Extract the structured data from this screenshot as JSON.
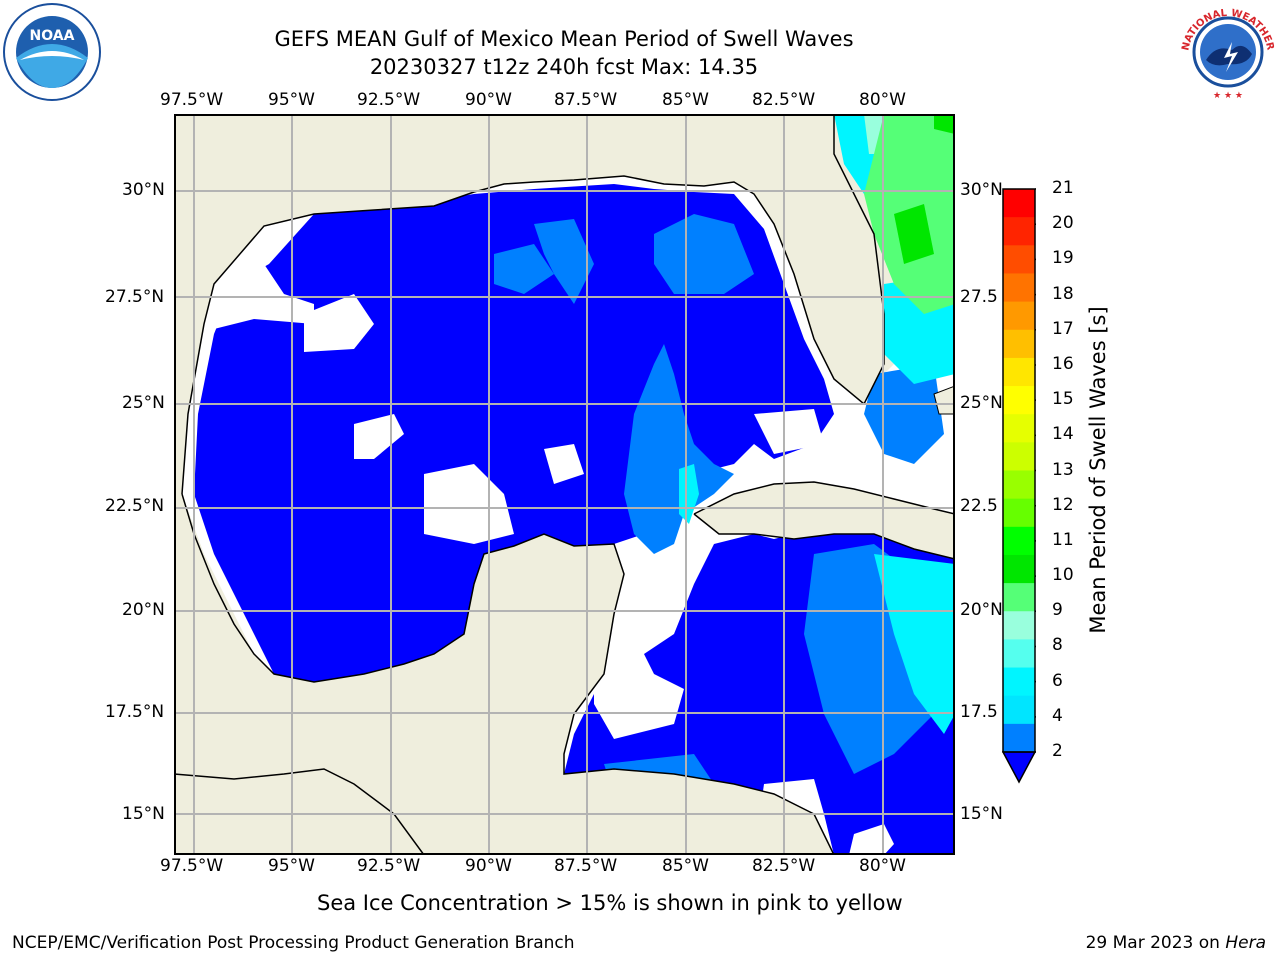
{
  "header": {
    "title_line1": "GEFS MEAN Gulf of Mexico Mean Period of Swell Waves",
    "title_line2": "20230327 t12z 240h fcst   Max: 14.35"
  },
  "logos": {
    "left": {
      "icon": "noaa-logo",
      "text": "NOAA"
    },
    "right": {
      "icon": "nws-logo",
      "text": "NATIONAL WEATHER SERVICE"
    }
  },
  "map": {
    "lon_labels": [
      "97.5°W",
      "95°W",
      "92.5°W",
      "90°W",
      "87.5°W",
      "85°W",
      "82.5°W",
      "80°W"
    ],
    "lat_labels_left": [
      "30°N",
      "27.5°N",
      "25°N",
      "22.5°N",
      "20°N",
      "17.5°N",
      "15°N"
    ],
    "lat_labels_right": [
      "30°N",
      "27.5",
      "25°N",
      "22.5",
      "20°N",
      "17.5",
      "15°N"
    ],
    "land_color": "#efeedd",
    "grid_color": "#b3b3b3"
  },
  "colorbar": {
    "label": "Mean Period of Swell Waves [s]",
    "ticks": [
      "21",
      "20",
      "19",
      "18",
      "17",
      "16",
      "15",
      "14",
      "13",
      "12",
      "11",
      "10",
      "9",
      "8",
      "6",
      "4",
      "2"
    ],
    "colors": [
      "#ff0000",
      "#ff2400",
      "#ff4d00",
      "#ff7300",
      "#ff9900",
      "#ffbf00",
      "#ffe600",
      "#ffff00",
      "#e6ff00",
      "#ccff00",
      "#99ff00",
      "#66ff00",
      "#00ff00",
      "#00e600",
      "#55ff77",
      "#99ffdd",
      "#55ffee",
      "#00f5ff",
      "#00e5ff",
      "#0080ff"
    ],
    "extend_color": "#0000ff"
  },
  "footer": {
    "note": "Sea Ice Concentration > 15% is shown in pink to yellow",
    "credit": "NCEP/EMC/Verification Post Processing Product Generation Branch",
    "date": "29 Mar 2023 on ",
    "host": "Hera"
  }
}
